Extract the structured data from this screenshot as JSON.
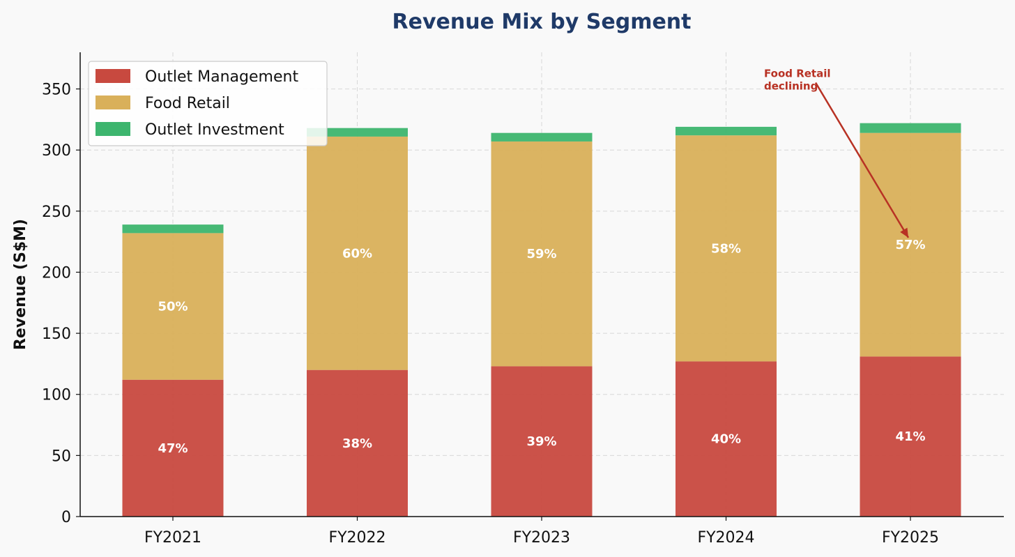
{
  "chart_data": {
    "type": "bar",
    "stacked": true,
    "title": "Revenue Mix by Segment",
    "xlabel": "",
    "ylabel": "Revenue (S$M)",
    "ylim": [
      0,
      380
    ],
    "yticks": [
      "0",
      "50",
      "100",
      "150",
      "200",
      "250",
      "300",
      "350"
    ],
    "categories": [
      "FY2021",
      "FY2022",
      "FY2023",
      "FY2024",
      "FY2025"
    ],
    "grid": true,
    "legend_position": "top-left",
    "series": [
      {
        "name": "Outlet Management",
        "color": "#c8493f",
        "values": [
          112,
          120,
          123,
          127,
          131
        ],
        "labels": [
          "47%",
          "38%",
          "39%",
          "40%",
          "41%"
        ]
      },
      {
        "name": "Food Retail",
        "color": "#d9b05a",
        "values": [
          120,
          191,
          184,
          185,
          183
        ],
        "labels": [
          "50%",
          "60%",
          "59%",
          "58%",
          "57%"
        ]
      },
      {
        "name": "Outlet Investment",
        "color": "#3db56e",
        "values": [
          7,
          7,
          7,
          7,
          8
        ],
        "labels": []
      }
    ],
    "annotation": {
      "text_lines": [
        "Food Retail",
        "declining"
      ],
      "color": "#b83224",
      "target_category": "FY2025",
      "target_value": 226,
      "text_anchor_value": 350
    }
  },
  "colors": {
    "title": "#1f3a68",
    "grid": "#d8d8d8",
    "axis": "#111111"
  }
}
